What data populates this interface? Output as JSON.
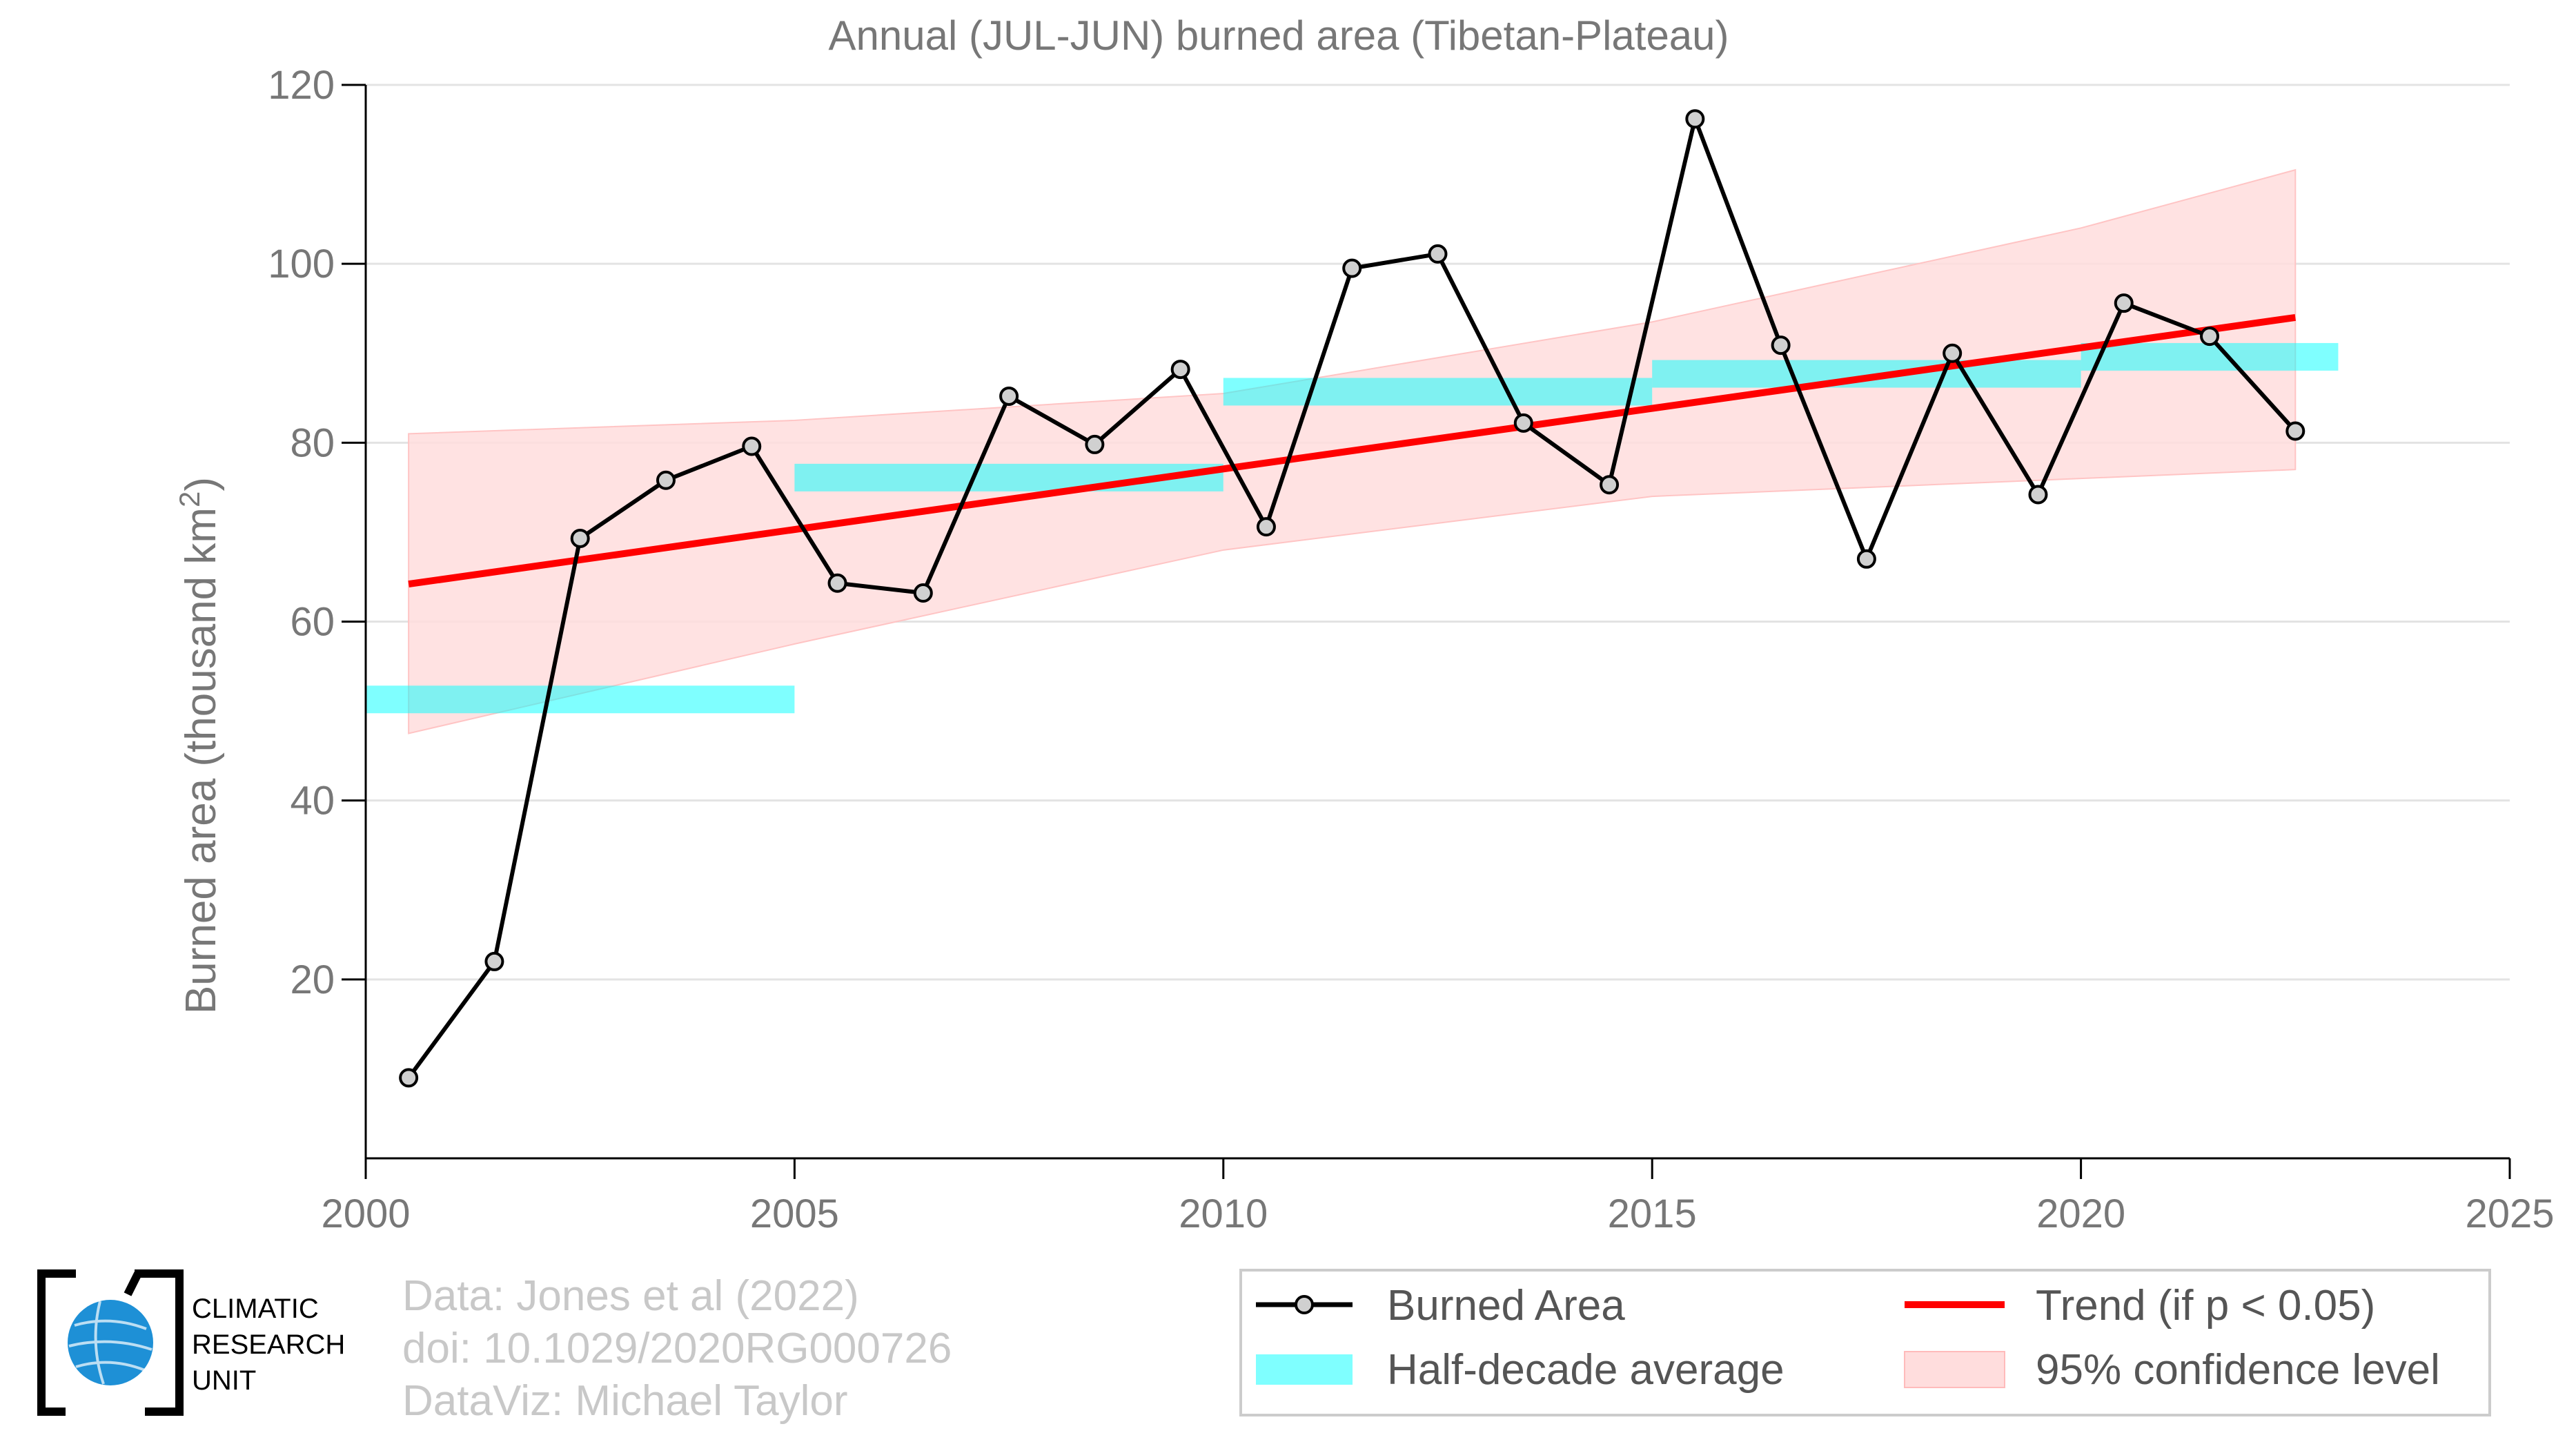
{
  "chart_data": {
    "type": "line",
    "title": "Annual (JUL-JUN) burned area (Tibetan-Plateau)",
    "ylabel": "Burned area (thousand km",
    "ylabel_sup": "2",
    "ylabel_tail": ")",
    "xlim": [
      2000,
      2025
    ],
    "ylim": [
      0,
      120
    ],
    "x_ticks": [
      2000,
      2005,
      2010,
      2015,
      2020,
      2025
    ],
    "y_ticks": [
      20,
      40,
      60,
      80,
      100,
      120
    ],
    "grid": "horizontal",
    "legend_position": "bottom-right",
    "series": [
      {
        "name": "Burned Area",
        "type": "line",
        "color": "#000000",
        "x": [
          2000.5,
          2001.5,
          2002.5,
          2003.5,
          2004.5,
          2005.5,
          2006.5,
          2007.5,
          2008.5,
          2009.5,
          2010.5,
          2011.5,
          2012.5,
          2013.5,
          2014.5,
          2015.5,
          2016.5,
          2017.5,
          2018.5,
          2019.5,
          2020.5,
          2021.5,
          2022.5
        ],
        "values": [
          9,
          22,
          69.3,
          75.8,
          79.6,
          64.3,
          63.2,
          85.2,
          79.8,
          88.2,
          70.6,
          99.5,
          101.1,
          82.2,
          75.3,
          116.2,
          90.9,
          67.0,
          90.0,
          74.2,
          95.6,
          91.9,
          81.3
        ]
      },
      {
        "name": "Half-decade average",
        "type": "step",
        "color": "#00ffff",
        "segments": [
          {
            "x0": 2000,
            "x1": 2005,
            "value": 51.3
          },
          {
            "x0": 2005,
            "x1": 2010,
            "value": 76.1
          },
          {
            "x0": 2010,
            "x1": 2015,
            "value": 85.7
          },
          {
            "x0": 2015,
            "x1": 2020,
            "value": 87.7
          },
          {
            "x0": 2020,
            "x1": 2023,
            "value": 89.6
          }
        ]
      },
      {
        "name": "Trend (if p < 0.05)",
        "type": "line",
        "color": "#ff0000",
        "x": [
          2000.5,
          2022.5
        ],
        "values": [
          64.2,
          94.0
        ]
      },
      {
        "name": "95% confidence level",
        "type": "band",
        "color": "#ffdddd",
        "x": [
          2000.5,
          2005,
          2010,
          2015,
          2020,
          2022.5
        ],
        "upper": [
          81.0,
          82.5,
          85.5,
          93.5,
          104.0,
          110.5
        ],
        "lower": [
          47.5,
          57.5,
          68.0,
          74.0,
          76.0,
          77.0
        ]
      }
    ]
  },
  "legend": [
    {
      "key": "burned",
      "label": "Burned Area"
    },
    {
      "key": "trend",
      "label": "Trend (if p < 0.05)"
    },
    {
      "key": "avg",
      "label": "Half-decade average"
    },
    {
      "key": "ci",
      "label": "95% confidence level"
    }
  ],
  "credits": {
    "line1": "Data: Jones et al (2022)",
    "line2": "doi: 10.1029/2020RG000726",
    "line3": "DataViz: Michael Taylor"
  },
  "logo": {
    "line1": "CLIMATIC",
    "line2": "RESEARCH",
    "line3": "UNIT"
  }
}
